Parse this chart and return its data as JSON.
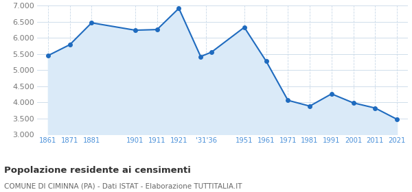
{
  "x_data": [
    1861,
    1871,
    1881,
    1901,
    1911,
    1921,
    1931,
    1936,
    1951,
    1961,
    1971,
    1981,
    1991,
    2001,
    2011,
    2021
  ],
  "y_values": [
    5450,
    5790,
    6470,
    6240,
    6260,
    6920,
    5420,
    5560,
    6330,
    5280,
    4060,
    3880,
    4260,
    3980,
    3820,
    3470
  ],
  "x_tick_positions": [
    1861,
    1871,
    1881,
    1901,
    1911,
    1921,
    1933.5,
    1951,
    1961,
    1971,
    1981,
    1991,
    2001,
    2011,
    2021
  ],
  "x_tick_labels": [
    "1861",
    "1871",
    "1881",
    "1901",
    "1911",
    "1921",
    "'31'36",
    "1951",
    "1961",
    "1971",
    "1981",
    "1991",
    "2001",
    "2011",
    "2021"
  ],
  "line_color": "#1f6bbf",
  "fill_color": "#daeaf8",
  "marker_color": "#1f6bbf",
  "background_color": "#ffffff",
  "grid_color": "#c8d8e8",
  "title": "Popolazione residente ai censimenti",
  "subtitle": "COMUNE DI CIMINNA (PA) - Dati ISTAT - Elaborazione TUTTITALIA.IT",
  "title_color": "#333333",
  "subtitle_color": "#666666",
  "tick_label_color": "#4a90d9",
  "ytick_label_color": "#777777",
  "ylim": [
    3000,
    7000
  ],
  "xlim": [
    1856,
    2026
  ],
  "yticks": [
    3000,
    3500,
    4000,
    4500,
    5000,
    5500,
    6000,
    6500,
    7000
  ]
}
